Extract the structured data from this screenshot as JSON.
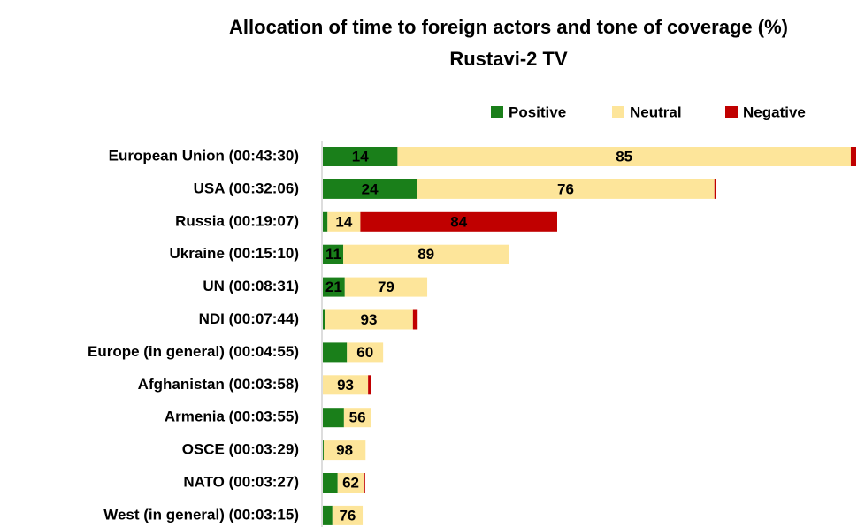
{
  "chart_data": {
    "type": "stacked-bar-horizontal",
    "title": "Allocation of time to foreign actors and tone of coverage (%)",
    "subtitle": "Rustavi-2 TV",
    "categories": [
      "European Union (00:43:30)",
      "USA (00:32:06)",
      "Russia (00:19:07)",
      "Ukraine (00:15:10)",
      "UN (00:08:31)",
      "NDI (00:07:44)",
      "Europe (in general) (00:04:55)",
      "Afghanistan (00:03:58)",
      "Armenia (00:03:55)",
      "OSCE (00:03:29)",
      "NATO (00:03:27)",
      "West (in general) (00:03:15)"
    ],
    "series": [
      {
        "name": "Positive",
        "color": "#1a7f1a",
        "values": [
          14,
          24,
          2,
          11,
          21,
          2,
          40,
          0,
          44,
          2,
          35,
          24
        ],
        "value_labels": [
          "14",
          "24",
          null,
          "11",
          "21",
          null,
          null,
          null,
          null,
          null,
          null,
          null
        ]
      },
      {
        "name": "Neutral",
        "color": "#fde59a",
        "values": [
          85,
          76,
          14,
          89,
          79,
          93,
          60,
          93,
          56,
          98,
          62,
          76
        ],
        "value_labels": [
          "85",
          "76",
          "14",
          "89",
          "79",
          "93",
          "60",
          "93",
          "56",
          "98",
          "62",
          "76"
        ]
      },
      {
        "name": "Negative",
        "color": "#c00000",
        "values": [
          1,
          0.5,
          84,
          0,
          0,
          5,
          0,
          7,
          0,
          0,
          3,
          0
        ],
        "value_labels": [
          null,
          null,
          "84",
          null,
          null,
          null,
          null,
          null,
          null,
          null,
          null,
          null
        ]
      }
    ],
    "legend": "top-right"
  }
}
